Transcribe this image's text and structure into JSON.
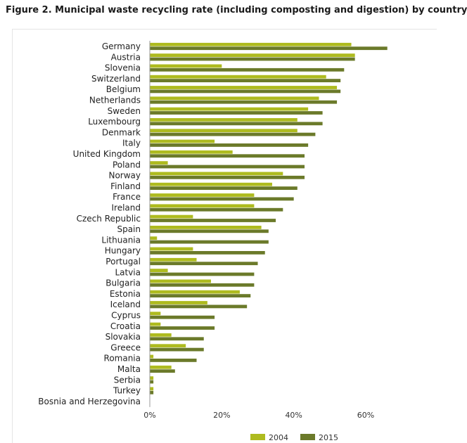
{
  "figure_title": "Figure 2. Municipal waste recycling rate (including composting and digestion) by country",
  "colors": {
    "series_2004": "#aebb1f",
    "series_2015": "#6b7a2a",
    "axis": "#999999"
  },
  "chart_data": {
    "type": "bar",
    "orientation": "horizontal",
    "title": "Figure 2. Municipal waste recycling rate (including composting and digestion) by country",
    "categories": [
      "Germany",
      "Austria",
      "Slovenia",
      "Switzerland",
      "Belgium",
      "Netherlands",
      "Sweden",
      "Luxembourg",
      "Denmark",
      "Italy",
      "United Kingdom",
      "Poland",
      "Norway",
      "Finland",
      "France",
      "Ireland",
      "Czech Republic",
      "Spain",
      "Lithuania",
      "Hungary",
      "Portugal",
      "Latvia",
      "Bulgaria",
      "Estonia",
      "Iceland",
      "Cyprus",
      "Croatia",
      "Slovakia",
      "Greece",
      "Romania",
      "Malta",
      "Serbia",
      "Turkey",
      "Bosnia and Herzegovina"
    ],
    "series": [
      {
        "name": "2004",
        "values": [
          56,
          57,
          20,
          49,
          52,
          47,
          44,
          41,
          41,
          18,
          23,
          5,
          37,
          34,
          29,
          29,
          12,
          31,
          2,
          12,
          13,
          5,
          17,
          25,
          16,
          3,
          3,
          6,
          10,
          1,
          6,
          1,
          1,
          0
        ]
      },
      {
        "name": "2015",
        "values": [
          66,
          57,
          54,
          53,
          53,
          52,
          48,
          48,
          46,
          44,
          43,
          43,
          43,
          41,
          40,
          37,
          35,
          33,
          33,
          32,
          30,
          29,
          29,
          28,
          27,
          18,
          18,
          15,
          15,
          13,
          7,
          1,
          1,
          0
        ]
      }
    ],
    "xlim": [
      0,
      70
    ],
    "x_ticks": [
      0,
      20,
      40,
      60
    ],
    "x_tick_labels": [
      "0%",
      "20%",
      "40%",
      "60%"
    ],
    "legend_position": "bottom-center",
    "grid": false
  }
}
